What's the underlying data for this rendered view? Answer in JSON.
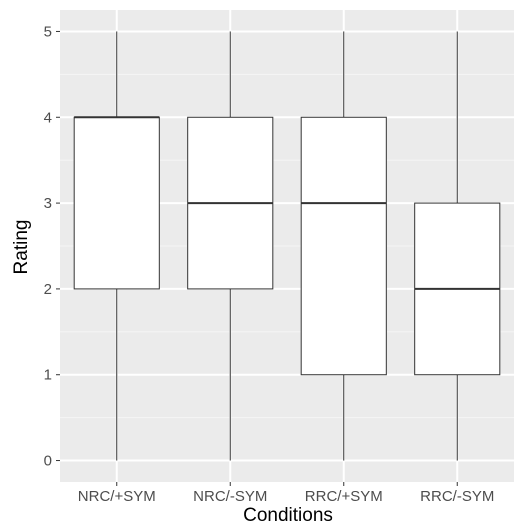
{
  "chart_data": {
    "type": "boxplot",
    "xlabel": "Conditions",
    "ylabel": "Rating",
    "categories": [
      "NRC/+SYM",
      "NRC/-SYM",
      "RRC/+SYM",
      "RRC/-SYM"
    ],
    "boxes": [
      {
        "min": 0,
        "q1": 2,
        "median": 4,
        "q3": 4,
        "max": 5
      },
      {
        "min": 0,
        "q1": 2,
        "median": 3,
        "q3": 4,
        "max": 5
      },
      {
        "min": 0,
        "q1": 1,
        "median": 3,
        "q3": 4,
        "max": 5
      },
      {
        "min": 0,
        "q1": 1,
        "median": 2,
        "q3": 3,
        "max": 5
      }
    ],
    "yticks": [
      "0",
      "1",
      "2",
      "3",
      "4",
      "5"
    ],
    "ylim": [
      -0.25,
      5.25
    ],
    "grid": true,
    "colors": {
      "panel": "#ebebeb",
      "grid_major": "#ffffff",
      "grid_minor": "#f5f5f5",
      "box_fill": "#ffffff",
      "box_stroke": "#333333",
      "tick": "#333333"
    }
  }
}
